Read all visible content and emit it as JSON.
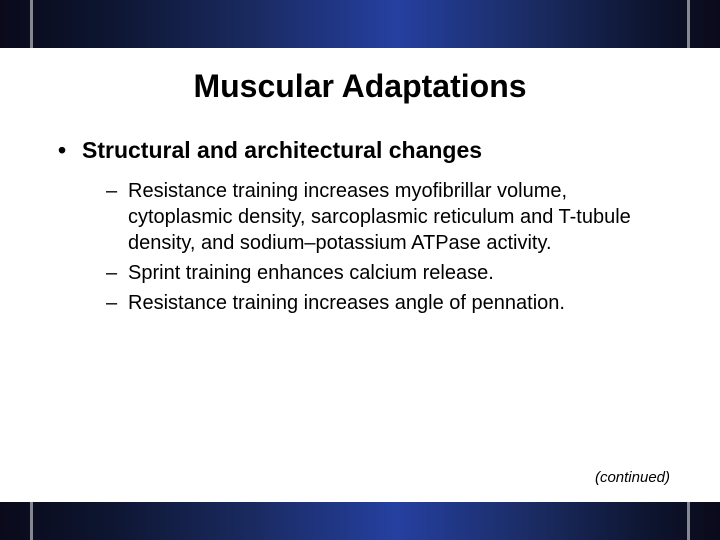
{
  "slide": {
    "title": "Muscular Adaptations",
    "main_bullet": "Structural and architectural changes",
    "sub_bullets": [
      "Resistance training increases myofibrillar volume, cytoplasmic density, sarcoplasmic reticulum and T-tubule density, and sodium–potassium ATPase activity.",
      "Sprint training enhances calcium release.",
      "Resistance training increases angle of pennation."
    ],
    "continued_label": "(continued)"
  },
  "style": {
    "background_color": "#ffffff",
    "bar_gradient": [
      "#0a0a1a",
      "#0d1530",
      "#1a2a60",
      "#2540a0"
    ],
    "title_fontsize": 32,
    "main_bullet_fontsize": 23,
    "sub_bullet_fontsize": 20,
    "continued_fontsize": 15,
    "text_color": "#000000",
    "top_bar_height": 48,
    "bottom_bar_height": 38
  }
}
